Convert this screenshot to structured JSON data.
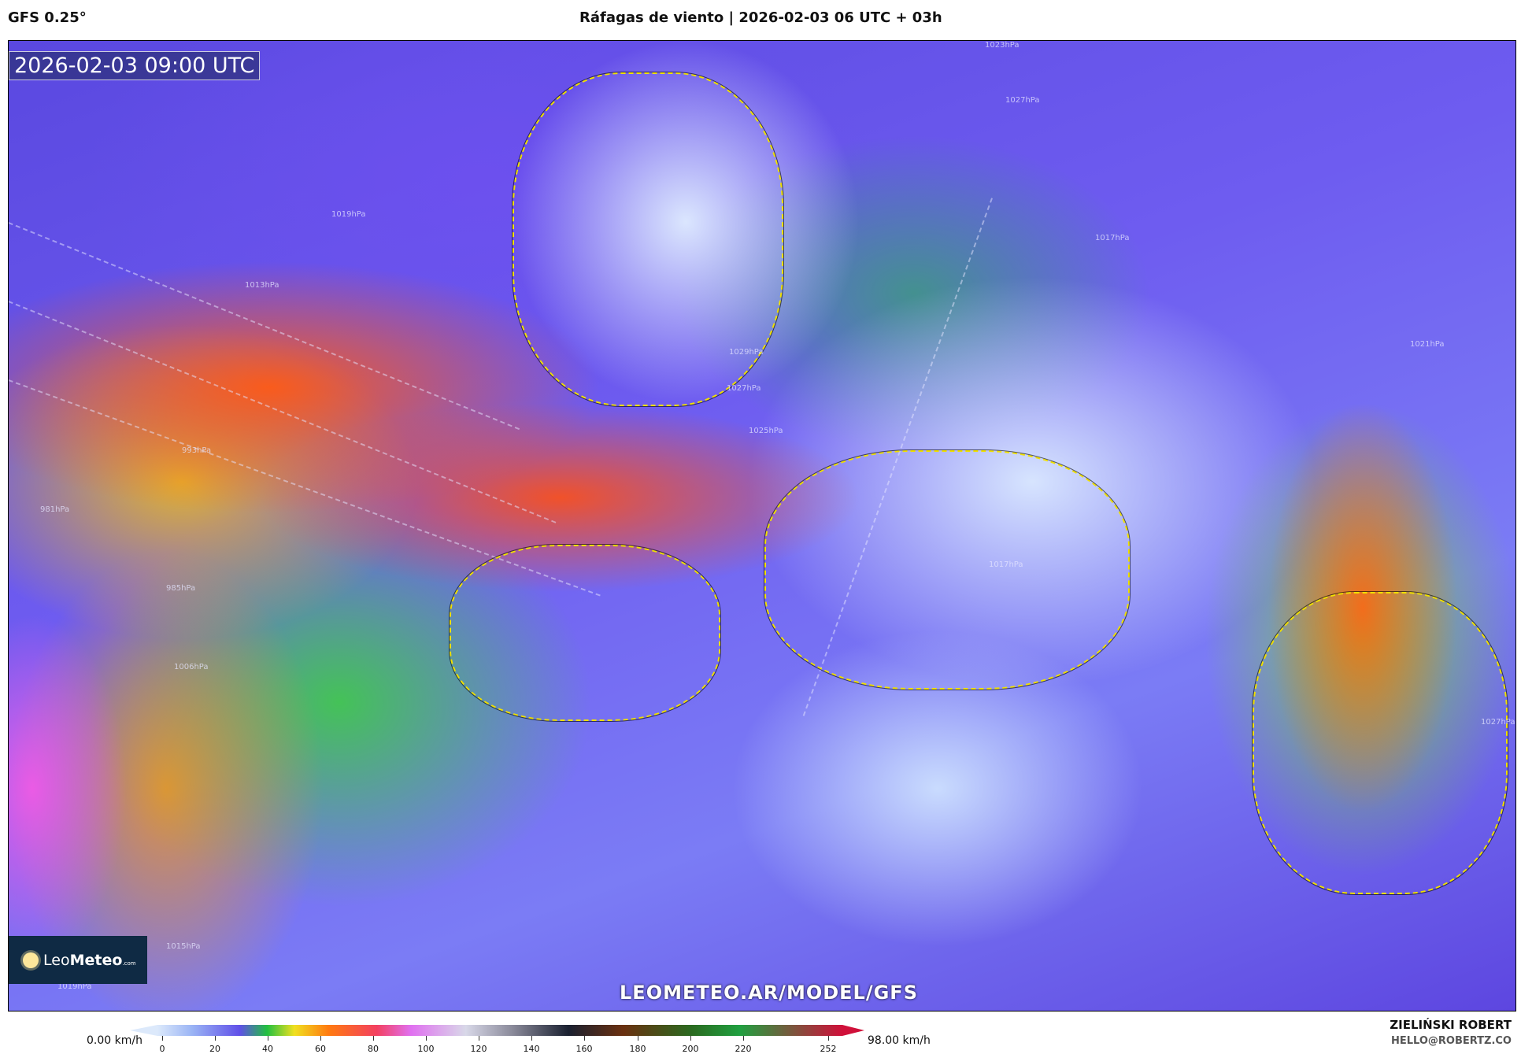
{
  "header": {
    "model": "GFS 0.25°",
    "title": "Ráfagas de viento | 2026-02-03 06 UTC + 03h"
  },
  "map": {
    "valid_time": "2026-02-03 09:00 UTC",
    "watermark": "LEOMETEO.AR/MODEL/GFS",
    "logo": {
      "text_light": "Leo",
      "text_bold": "Meteo",
      "suffix": ".com",
      "icon": "sun-icon"
    },
    "isobar_labels": [
      "1023hPa",
      "1027hPa",
      "1019hPa",
      "1013hPa",
      "1029hPa",
      "1027hPa",
      "1025hPa",
      "993hPa",
      "981hPa",
      "985hPa",
      "1006hPa",
      "1015hPa",
      "1019hPa",
      "1017hPa",
      "1021hPa",
      "1017hPa",
      "1027hPa"
    ]
  },
  "colorbar": {
    "min_label": "0.00 km/h",
    "max_label": "98.00 km/h",
    "ticks": [
      "0",
      "20",
      "40",
      "60",
      "80",
      "100",
      "120",
      "140",
      "160",
      "180",
      "200",
      "220",
      "252"
    ]
  },
  "credits": {
    "author": "ZIELIŃSKI ROBERT",
    "email": "HELLO@ROBERTZ.CO"
  }
}
